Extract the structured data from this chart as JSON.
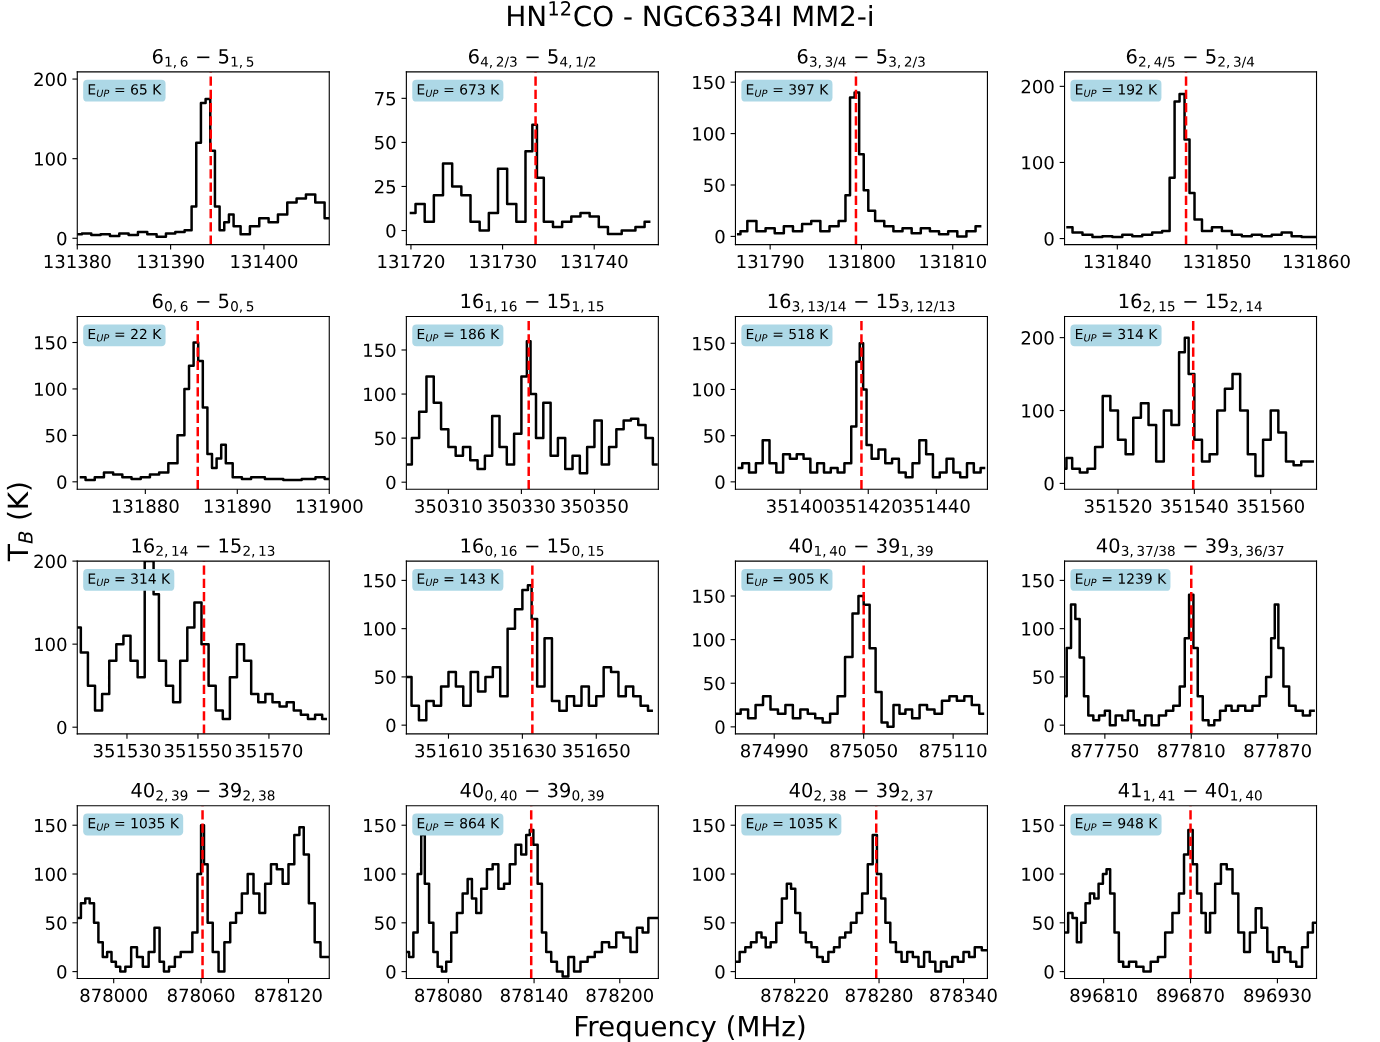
{
  "chart_data": [
    {
      "type": "other",
      "title": "HN$^{12}$CO - NGC6334I MM2-i",
      "xlabel": "Frequency (MHz)",
      "ylabel": "T$_{B}$ (K)"
    },
    {
      "type": "step",
      "title": "6$_{1,6}$ − 5$_{1,5}$",
      "annotations": [
        "E$_{UP}$ = 65 K"
      ],
      "xlim": [
        131380,
        131407
      ],
      "xticks": [
        131380,
        131390,
        131400
      ],
      "ylim": [
        -8,
        209
      ],
      "yticks": [
        0,
        100,
        200
      ],
      "ref_lines": [
        {
          "axis": "x",
          "value": 131394.3,
          "color": "#ff0000",
          "line_style": "dashed"
        }
      ],
      "series": [
        {
          "color": "#000000",
          "x": [
            131380,
            131381,
            131382,
            131383,
            131384,
            131385,
            131386,
            131387,
            131388,
            131389,
            131390,
            131391,
            131392,
            131392.5,
            131393,
            131393.5,
            131394,
            131394.5,
            131395,
            131395.5,
            131396,
            131396.5,
            131397,
            131398,
            131399,
            131400,
            131401,
            131402,
            131403,
            131404,
            131405,
            131406,
            131407
          ],
          "values": [
            5,
            6,
            4,
            5,
            3,
            6,
            4,
            8,
            5,
            2,
            6,
            8,
            10,
            40,
            120,
            170,
            175,
            110,
            40,
            10,
            20,
            30,
            15,
            5,
            15,
            25,
            20,
            30,
            45,
            50,
            55,
            45,
            25
          ]
        }
      ]
    },
    {
      "type": "step",
      "title": "6$_{4,2/3}$ − 5$_{4,1/2}$",
      "annotations": [
        "E$_{UP}$ = 673 K"
      ],
      "xlim": [
        131719.5,
        131747
      ],
      "xticks": [
        131720,
        131730,
        131740
      ],
      "ylim": [
        -8,
        90
      ],
      "yticks": [
        0,
        25,
        50,
        75
      ],
      "ref_lines": [
        {
          "axis": "x",
          "value": 131733.6,
          "color": "#ff0000",
          "line_style": "dashed"
        }
      ],
      "series": [
        {
          "color": "#000000",
          "x": [
            131720,
            131721,
            131722,
            131723,
            131724,
            131725,
            131726,
            131727,
            131728,
            131729,
            131730,
            131731,
            131732,
            131733,
            131733.5,
            131734,
            131735,
            131736,
            131737,
            131738,
            131739,
            131740,
            131741,
            131742,
            131744,
            131745,
            131746
          ],
          "values": [
            10,
            15,
            5,
            20,
            38,
            25,
            20,
            5,
            0,
            10,
            35,
            15,
            5,
            45,
            60,
            30,
            5,
            2,
            5,
            8,
            10,
            8,
            2,
            -2,
            0,
            2,
            5
          ]
        }
      ]
    },
    {
      "type": "step",
      "title": "6$_{3,3/4}$ − 5$_{3,2/3}$",
      "annotations": [
        "E$_{UP}$ = 397 K"
      ],
      "xlim": [
        131786.2,
        131813.8
      ],
      "xticks": [
        131790,
        131800,
        131810
      ],
      "ylim": [
        -8,
        160
      ],
      "yticks": [
        0,
        50,
        100,
        150
      ],
      "ref_lines": [
        {
          "axis": "x",
          "value": 131799.4,
          "color": "#ff0000",
          "line_style": "dashed"
        }
      ],
      "series": [
        {
          "color": "#000000",
          "x": [
            131786.5,
            131787,
            131788,
            131789,
            131790,
            131791,
            131792,
            131793,
            131794,
            131795,
            131796,
            131797,
            131798,
            131798.5,
            131799,
            131799.5,
            131800,
            131800.5,
            131801,
            131802,
            131803,
            131804,
            131805,
            131806,
            131807,
            131808,
            131809,
            131810,
            131811,
            131812,
            131813
          ],
          "values": [
            2,
            5,
            15,
            5,
            8,
            3,
            10,
            5,
            12,
            15,
            5,
            10,
            15,
            40,
            135,
            140,
            80,
            45,
            25,
            15,
            10,
            5,
            8,
            3,
            8,
            5,
            2,
            5,
            0,
            5,
            10
          ]
        }
      ]
    },
    {
      "type": "step",
      "title": "6$_{2,4/5}$ − 5$_{2,3/4}$",
      "annotations": [
        "E$_{UP}$ = 192 K"
      ],
      "xlim": [
        131834.7,
        131860
      ],
      "xticks": [
        131840,
        131850,
        131860
      ],
      "ylim": [
        -8,
        219
      ],
      "yticks": [
        0,
        100,
        200
      ],
      "ref_lines": [
        {
          "axis": "x",
          "value": 131846.9,
          "color": "#ff0000",
          "line_style": "dashed"
        }
      ],
      "series": [
        {
          "color": "#000000",
          "x": [
            131835,
            131836,
            131837,
            131838,
            131839,
            131840,
            131841,
            131842,
            131843,
            131844,
            131845,
            131845.5,
            131846,
            131846.5,
            131847,
            131847.5,
            131848,
            131849,
            131850,
            131851,
            131852,
            131853,
            131854,
            131855,
            131856,
            131857,
            131858,
            131859,
            131860
          ],
          "values": [
            15,
            8,
            5,
            2,
            3,
            2,
            5,
            3,
            5,
            8,
            10,
            80,
            180,
            190,
            130,
            60,
            25,
            10,
            15,
            10,
            5,
            3,
            5,
            3,
            5,
            8,
            3,
            2,
            2
          ]
        }
      ]
    },
    {
      "type": "step",
      "title": "6$_{0,6}$ − 5$_{0,5}$",
      "annotations": [
        "E$_{UP}$ = 22 K"
      ],
      "xlim": [
        131872.6,
        131900
      ],
      "xticks": [
        131880,
        131890,
        131900
      ],
      "ylim": [
        -8,
        178
      ],
      "yticks": [
        0,
        50,
        100,
        150
      ],
      "ref_lines": [
        {
          "axis": "x",
          "value": 131885.7,
          "color": "#ff0000",
          "line_style": "dashed"
        }
      ],
      "series": [
        {
          "color": "#000000",
          "x": [
            131873,
            131874,
            131875,
            131876,
            131877,
            131878,
            131879,
            131880,
            131881,
            131882,
            131883,
            131884,
            131884.5,
            131885,
            131885.5,
            131886,
            131886.5,
            131887,
            131887.5,
            131888,
            131888.5,
            131889,
            131890,
            131891,
            131892,
            131894,
            131896,
            131898,
            131899,
            131900
          ],
          "values": [
            5,
            2,
            5,
            10,
            8,
            5,
            3,
            5,
            8,
            10,
            20,
            50,
            100,
            125,
            150,
            130,
            80,
            30,
            15,
            25,
            40,
            20,
            5,
            3,
            5,
            3,
            2,
            3,
            5,
            3
          ]
        }
      ]
    },
    {
      "type": "step",
      "title": "16$_{1,16}$ − 15$_{1,15}$",
      "annotations": [
        "E$_{UP}$ = 186 K"
      ],
      "xlim": [
        350298.5,
        350367.5
      ],
      "xticks": [
        350310,
        350330,
        350350
      ],
      "ylim": [
        -8,
        188
      ],
      "yticks": [
        0,
        50,
        100,
        150
      ],
      "ref_lines": [
        {
          "axis": "x",
          "value": 350332,
          "color": "#ff0000",
          "line_style": "dashed"
        }
      ],
      "series": [
        {
          "color": "#000000",
          "x": [
            350299,
            350301,
            350303,
            350305,
            350307,
            350309,
            350311,
            350313,
            350315,
            350317,
            350319,
            350321,
            350323,
            350325,
            350327,
            350329,
            350331,
            350332,
            350333,
            350335,
            350337,
            350339,
            350341,
            350343,
            350345,
            350347,
            350349,
            350351,
            350353,
            350355,
            350357,
            350359,
            350361,
            350363,
            350365,
            350367
          ],
          "values": [
            20,
            50,
            80,
            120,
            90,
            60,
            40,
            30,
            40,
            25,
            15,
            30,
            75,
            40,
            20,
            55,
            120,
            160,
            100,
            50,
            90,
            30,
            50,
            15,
            30,
            10,
            40,
            70,
            20,
            40,
            60,
            70,
            72,
            65,
            50,
            20
          ]
        }
      ]
    },
    {
      "type": "step",
      "title": "16$_{3,13/14}$ − 15$_{3,12/13}$",
      "annotations": [
        "E$_{UP}$ = 518 K"
      ],
      "xlim": [
        351381,
        351455
      ],
      "xticks": [
        351400,
        351420,
        351440
      ],
      "ylim": [
        -8,
        179
      ],
      "yticks": [
        0,
        50,
        100,
        150
      ],
      "ref_lines": [
        {
          "axis": "x",
          "value": 351418,
          "color": "#ff0000",
          "line_style": "dashed"
        }
      ],
      "series": [
        {
          "color": "#000000",
          "x": [
            351382,
            351384,
            351386,
            351388,
            351390,
            351392,
            351394,
            351396,
            351398,
            351400,
            351402,
            351404,
            351406,
            351408,
            351410,
            351412,
            351414,
            351416,
            351417,
            351418,
            351419,
            351420,
            351422,
            351424,
            351426,
            351428,
            351430,
            351432,
            351434,
            351436,
            351438,
            351440,
            351442,
            351444,
            351446,
            351448,
            351450,
            351452,
            351454
          ],
          "values": [
            15,
            20,
            10,
            20,
            45,
            20,
            10,
            30,
            25,
            30,
            25,
            10,
            20,
            10,
            15,
            10,
            20,
            60,
            130,
            150,
            100,
            40,
            25,
            35,
            20,
            25,
            10,
            5,
            20,
            45,
            30,
            5,
            10,
            25,
            10,
            5,
            20,
            10,
            15
          ]
        }
      ]
    },
    {
      "type": "step",
      "title": "16$_{2,15}$ − 15$_{2,14}$",
      "annotations": [
        "E$_{UP}$ = 314 K"
      ],
      "xlim": [
        351506,
        351572
      ],
      "xticks": [
        351520,
        351540,
        351560
      ],
      "ylim": [
        -8,
        229
      ],
      "yticks": [
        0,
        100,
        200
      ],
      "ref_lines": [
        {
          "axis": "x",
          "value": 351539.7,
          "color": "#ff0000",
          "line_style": "dashed"
        }
      ],
      "series": [
        {
          "color": "#000000",
          "x": [
            351506,
            351507,
            351509,
            351511,
            351513,
            351515,
            351517,
            351519,
            351521,
            351523,
            351525,
            351527,
            351529,
            351531,
            351533,
            351535,
            351537,
            351538,
            351539,
            351541,
            351543,
            351545,
            351547,
            351549,
            351551,
            351553,
            351555,
            351557,
            351559,
            351561,
            351563,
            351565,
            351567,
            351569,
            351571
          ],
          "values": [
            20,
            35,
            20,
            15,
            20,
            50,
            120,
            100,
            60,
            40,
            90,
            110,
            80,
            30,
            100,
            80,
            180,
            200,
            150,
            60,
            30,
            40,
            100,
            130,
            150,
            100,
            40,
            10,
            60,
            100,
            70,
            30,
            25,
            30,
            30
          ]
        }
      ]
    },
    {
      "type": "step",
      "title": "16$_{2,14}$ − 15$_{2,13}$",
      "annotations": [
        "E$_{UP}$ = 314 K"
      ],
      "xlim": [
        351516,
        351587
      ],
      "xticks": [
        351530,
        351550,
        351570
      ],
      "ylim": [
        -8,
        200
      ],
      "yticks": [
        0,
        100,
        200
      ],
      "ref_lines": [
        {
          "axis": "x",
          "value": 351551.7,
          "color": "#ff0000",
          "line_style": "dashed"
        }
      ],
      "series": [
        {
          "color": "#000000",
          "x": [
            351516,
            351518,
            351520,
            351522,
            351524,
            351526,
            351528,
            351530,
            351532,
            351534,
            351536,
            351537,
            351538,
            351540,
            351542,
            351544,
            351546,
            351548,
            351550,
            351552,
            351554,
            351556,
            351558,
            351560,
            351562,
            351564,
            351566,
            351568,
            351570,
            351572,
            351574,
            351576,
            351578,
            351580,
            351582,
            351584,
            351586
          ],
          "values": [
            120,
            90,
            50,
            20,
            40,
            80,
            100,
            110,
            80,
            60,
            200,
            200,
            160,
            80,
            50,
            30,
            80,
            120,
            150,
            100,
            50,
            20,
            10,
            60,
            100,
            80,
            40,
            30,
            40,
            30,
            25,
            30,
            20,
            15,
            10,
            15,
            10
          ]
        }
      ]
    },
    {
      "type": "step",
      "title": "16$_{0,16}$ − 15$_{0,15}$",
      "annotations": [
        "E$_{UP}$ = 143 K"
      ],
      "xlim": [
        351598.6,
        351666.8
      ],
      "xticks": [
        351610,
        351630,
        351650
      ],
      "ylim": [
        -9,
        170
      ],
      "yticks": [
        0,
        50,
        100,
        150
      ],
      "ref_lines": [
        {
          "axis": "x",
          "value": 351632.7,
          "color": "#ff0000",
          "line_style": "dashed"
        }
      ],
      "series": [
        {
          "color": "#000000",
          "x": [
            351599,
            351601,
            351603,
            351605,
            351607,
            351609,
            351611,
            351613,
            351615,
            351617,
            351619,
            351621,
            351623,
            351625,
            351627,
            351629,
            351631,
            351632,
            351633,
            351635,
            351637,
            351639,
            351641,
            351643,
            351645,
            351647,
            351649,
            351651,
            351653,
            351655,
            351657,
            351659,
            351661,
            351663,
            351665
          ],
          "values": [
            50,
            20,
            5,
            25,
            20,
            40,
            55,
            40,
            20,
            55,
            35,
            50,
            60,
            30,
            100,
            120,
            140,
            145,
            110,
            40,
            90,
            25,
            15,
            30,
            20,
            40,
            20,
            30,
            60,
            55,
            30,
            40,
            30,
            20,
            15
          ]
        }
      ]
    },
    {
      "type": "step",
      "title": "40$_{1,40}$ − 39$_{1,39}$",
      "annotations": [
        "E$_{UP}$ = 905 K"
      ],
      "xlim": [
        874964,
        875133
      ],
      "xticks": [
        874990,
        875050,
        875110
      ],
      "ylim": [
        -8,
        190
      ],
      "yticks": [
        0,
        50,
        100,
        150
      ],
      "ref_lines": [
        {
          "axis": "x",
          "value": 875050,
          "color": "#ff0000",
          "line_style": "dashed"
        }
      ],
      "series": [
        {
          "color": "#000000",
          "x": [
            874965,
            874970,
            874975,
            874980,
            874985,
            874990,
            874995,
            875000,
            875005,
            875010,
            875015,
            875020,
            875025,
            875030,
            875035,
            875040,
            875045,
            875048,
            875052,
            875056,
            875060,
            875064,
            875068,
            875072,
            875076,
            875080,
            875085,
            875090,
            875095,
            875100,
            875105,
            875110,
            875115,
            875120,
            875125,
            875130
          ],
          "values": [
            15,
            20,
            10,
            25,
            35,
            20,
            15,
            25,
            10,
            20,
            15,
            10,
            5,
            15,
            35,
            80,
            130,
            150,
            140,
            90,
            40,
            5,
            0,
            25,
            15,
            20,
            10,
            25,
            20,
            15,
            30,
            35,
            30,
            35,
            25,
            15
          ]
        }
      ]
    },
    {
      "type": "step",
      "title": "40$_{3,37/38}$ − 39$_{3,36/37}$",
      "annotations": [
        "E$_{UP}$ = 1239 K"
      ],
      "xlim": [
        877722,
        877897
      ],
      "xticks": [
        877750,
        877810,
        877870
      ],
      "ylim": [
        -9,
        170
      ],
      "yticks": [
        0,
        50,
        100,
        150
      ],
      "ref_lines": [
        {
          "axis": "x",
          "value": 877810,
          "color": "#ff0000",
          "line_style": "dashed"
        }
      ],
      "series": [
        {
          "color": "#000000",
          "x": [
            877722,
            877725,
            877728,
            877731,
            877734,
            877737,
            877740,
            877744,
            877748,
            877752,
            877755,
            877760,
            877764,
            877768,
            877772,
            877776,
            877780,
            877785,
            877790,
            877795,
            877800,
            877804,
            877807,
            877810,
            877813,
            877816,
            877820,
            877824,
            877828,
            877832,
            877836,
            877840,
            877845,
            877850,
            877855,
            877860,
            877864,
            877867,
            877869,
            877872,
            877876,
            877880,
            877885,
            877890,
            877895
          ],
          "values": [
            30,
            80,
            125,
            110,
            70,
            30,
            10,
            5,
            10,
            15,
            0,
            10,
            5,
            15,
            5,
            0,
            10,
            0,
            10,
            15,
            20,
            40,
            90,
            135,
            80,
            30,
            5,
            0,
            5,
            15,
            20,
            15,
            20,
            15,
            20,
            30,
            50,
            90,
            125,
            80,
            40,
            20,
            15,
            10,
            15
          ]
        }
      ]
    },
    {
      "type": "step",
      "title": "40$_{2,39}$ − 39$_{2,38}$",
      "annotations": [
        "E$_{UP}$ = 1035 K"
      ],
      "xlim": [
        877975,
        878148
      ],
      "xticks": [
        878000,
        878060,
        878120
      ],
      "ylim": [
        -7,
        170
      ],
      "yticks": [
        0,
        50,
        100,
        150
      ],
      "ref_lines": [
        {
          "axis": "x",
          "value": 878061,
          "color": "#ff0000",
          "line_style": "dashed"
        }
      ],
      "series": [
        {
          "color": "#000000",
          "x": [
            877976,
            877979,
            877982,
            877985,
            877988,
            877991,
            877994,
            877997,
            878000,
            878003,
            878006,
            878010,
            878014,
            878018,
            878022,
            878026,
            878030,
            878033,
            878036,
            878040,
            878044,
            878048,
            878052,
            878056,
            878059,
            878061,
            878063,
            878066,
            878070,
            878074,
            878078,
            878082,
            878086,
            878090,
            878094,
            878098,
            878102,
            878106,
            878110,
            878114,
            878118,
            878122,
            878126,
            878129,
            878132,
            878136,
            878140,
            878144,
            878147
          ],
          "values": [
            55,
            70,
            75,
            70,
            50,
            30,
            15,
            20,
            10,
            5,
            0,
            5,
            25,
            15,
            5,
            20,
            45,
            10,
            0,
            5,
            15,
            20,
            20,
            40,
            100,
            150,
            110,
            50,
            20,
            0,
            30,
            50,
            60,
            80,
            100,
            80,
            60,
            90,
            110,
            105,
            90,
            110,
            140,
            148,
            120,
            70,
            30,
            15,
            15
          ]
        }
      ]
    },
    {
      "type": "step",
      "title": "40$_{0,40}$ − 39$_{0,39}$",
      "annotations": [
        "E$_{UP}$ = 864 K"
      ],
      "xlim": [
        878050.6,
        878227
      ],
      "xticks": [
        878080,
        878140,
        878200
      ],
      "ylim": [
        -7,
        170
      ],
      "yticks": [
        0,
        50,
        100,
        150
      ],
      "ref_lines": [
        {
          "axis": "x",
          "value": 878138,
          "color": "#ff0000",
          "line_style": "dashed"
        }
      ],
      "series": [
        {
          "color": "#000000",
          "x": [
            878051,
            878054,
            878057,
            878060,
            878062,
            878065,
            878068,
            878071,
            878074,
            878077,
            878080,
            878084,
            878088,
            878092,
            878095,
            878098,
            878101,
            878105,
            878109,
            878113,
            878117,
            878121,
            878125,
            878129,
            878133,
            878136,
            878138,
            878141,
            878144,
            878147,
            878150,
            878154,
            878158,
            878162,
            878166,
            878170,
            878175,
            878180,
            878185,
            878190,
            878195,
            878200,
            878205,
            878210,
            878214,
            878218,
            878222,
            878226
          ],
          "values": [
            20,
            15,
            40,
            100,
            140,
            90,
            50,
            20,
            5,
            0,
            10,
            40,
            60,
            80,
            95,
            75,
            60,
            85,
            105,
            110,
            85,
            90,
            110,
            130,
            120,
            140,
            145,
            130,
            90,
            40,
            20,
            10,
            0,
            -5,
            15,
            0,
            10,
            15,
            20,
            30,
            25,
            40,
            35,
            20,
            45,
            40,
            55,
            55
          ]
        }
      ]
    },
    {
      "type": "step",
      "title": "40$_{2,38}$ − 39$_{2,37}$",
      "annotations": [
        "E$_{UP}$ = 1035 K"
      ],
      "xlim": [
        878178,
        878357
      ],
      "xticks": [
        878220,
        878280,
        878340
      ],
      "ylim": [
        -7,
        170
      ],
      "yticks": [
        0,
        50,
        100,
        150
      ],
      "ref_lines": [
        {
          "axis": "x",
          "value": 878278,
          "color": "#ff0000",
          "line_style": "dashed"
        }
      ],
      "series": [
        {
          "color": "#000000",
          "x": [
            878179,
            878183,
            878187,
            878191,
            878195,
            878198,
            878201,
            878205,
            878209,
            878213,
            878216,
            878219,
            878222,
            878226,
            878230,
            878234,
            878238,
            878242,
            878246,
            878250,
            878254,
            878258,
            878262,
            878266,
            878270,
            878274,
            878277,
            878280,
            878283,
            878286,
            878290,
            878294,
            878298,
            878302,
            878306,
            878310,
            878314,
            878318,
            878322,
            878326,
            878330,
            878334,
            878338,
            878342,
            878346,
            878350,
            878356
          ],
          "values": [
            10,
            20,
            25,
            30,
            40,
            35,
            25,
            30,
            50,
            75,
            90,
            85,
            60,
            40,
            30,
            25,
            15,
            10,
            20,
            25,
            35,
            40,
            50,
            60,
            80,
            110,
            140,
            100,
            75,
            50,
            30,
            20,
            10,
            20,
            15,
            5,
            20,
            10,
            0,
            10,
            5,
            15,
            10,
            20,
            15,
            25,
            22
          ]
        }
      ]
    },
    {
      "type": "step",
      "title": "41$_{1,41}$ − 40$_{1,40}$",
      "annotations": [
        "E$_{UP}$ = 948 K"
      ],
      "xlim": [
        896783,
        896957
      ],
      "xticks": [
        896810,
        896870,
        896930
      ],
      "ylim": [
        -7,
        170
      ],
      "yticks": [
        0,
        50,
        100,
        150
      ],
      "ref_lines": [
        {
          "axis": "x",
          "value": 896870,
          "color": "#ff0000",
          "line_style": "dashed"
        }
      ],
      "series": [
        {
          "color": "#000000",
          "x": [
            896784,
            896787,
            896790,
            896793,
            896796,
            896799,
            896802,
            896805,
            896808,
            896811,
            896813,
            896816,
            896819,
            896822,
            896825,
            896830,
            896835,
            896840,
            896845,
            896850,
            896855,
            896860,
            896864,
            896867,
            896870,
            896873,
            896876,
            896879,
            896882,
            896885,
            896889,
            896893,
            896897,
            896901,
            896905,
            896909,
            896913,
            896917,
            896921,
            896925,
            896929,
            896933,
            896937,
            896941,
            896945,
            896949,
            896953,
            896956
          ],
          "values": [
            40,
            60,
            55,
            30,
            50,
            70,
            80,
            75,
            90,
            100,
            105,
            80,
            40,
            10,
            5,
            10,
            5,
            0,
            10,
            15,
            40,
            60,
            80,
            120,
            145,
            110,
            80,
            60,
            40,
            60,
            90,
            110,
            105,
            80,
            40,
            20,
            40,
            65,
            45,
            20,
            10,
            25,
            20,
            10,
            5,
            25,
            40,
            50
          ]
        }
      ]
    }
  ]
}
